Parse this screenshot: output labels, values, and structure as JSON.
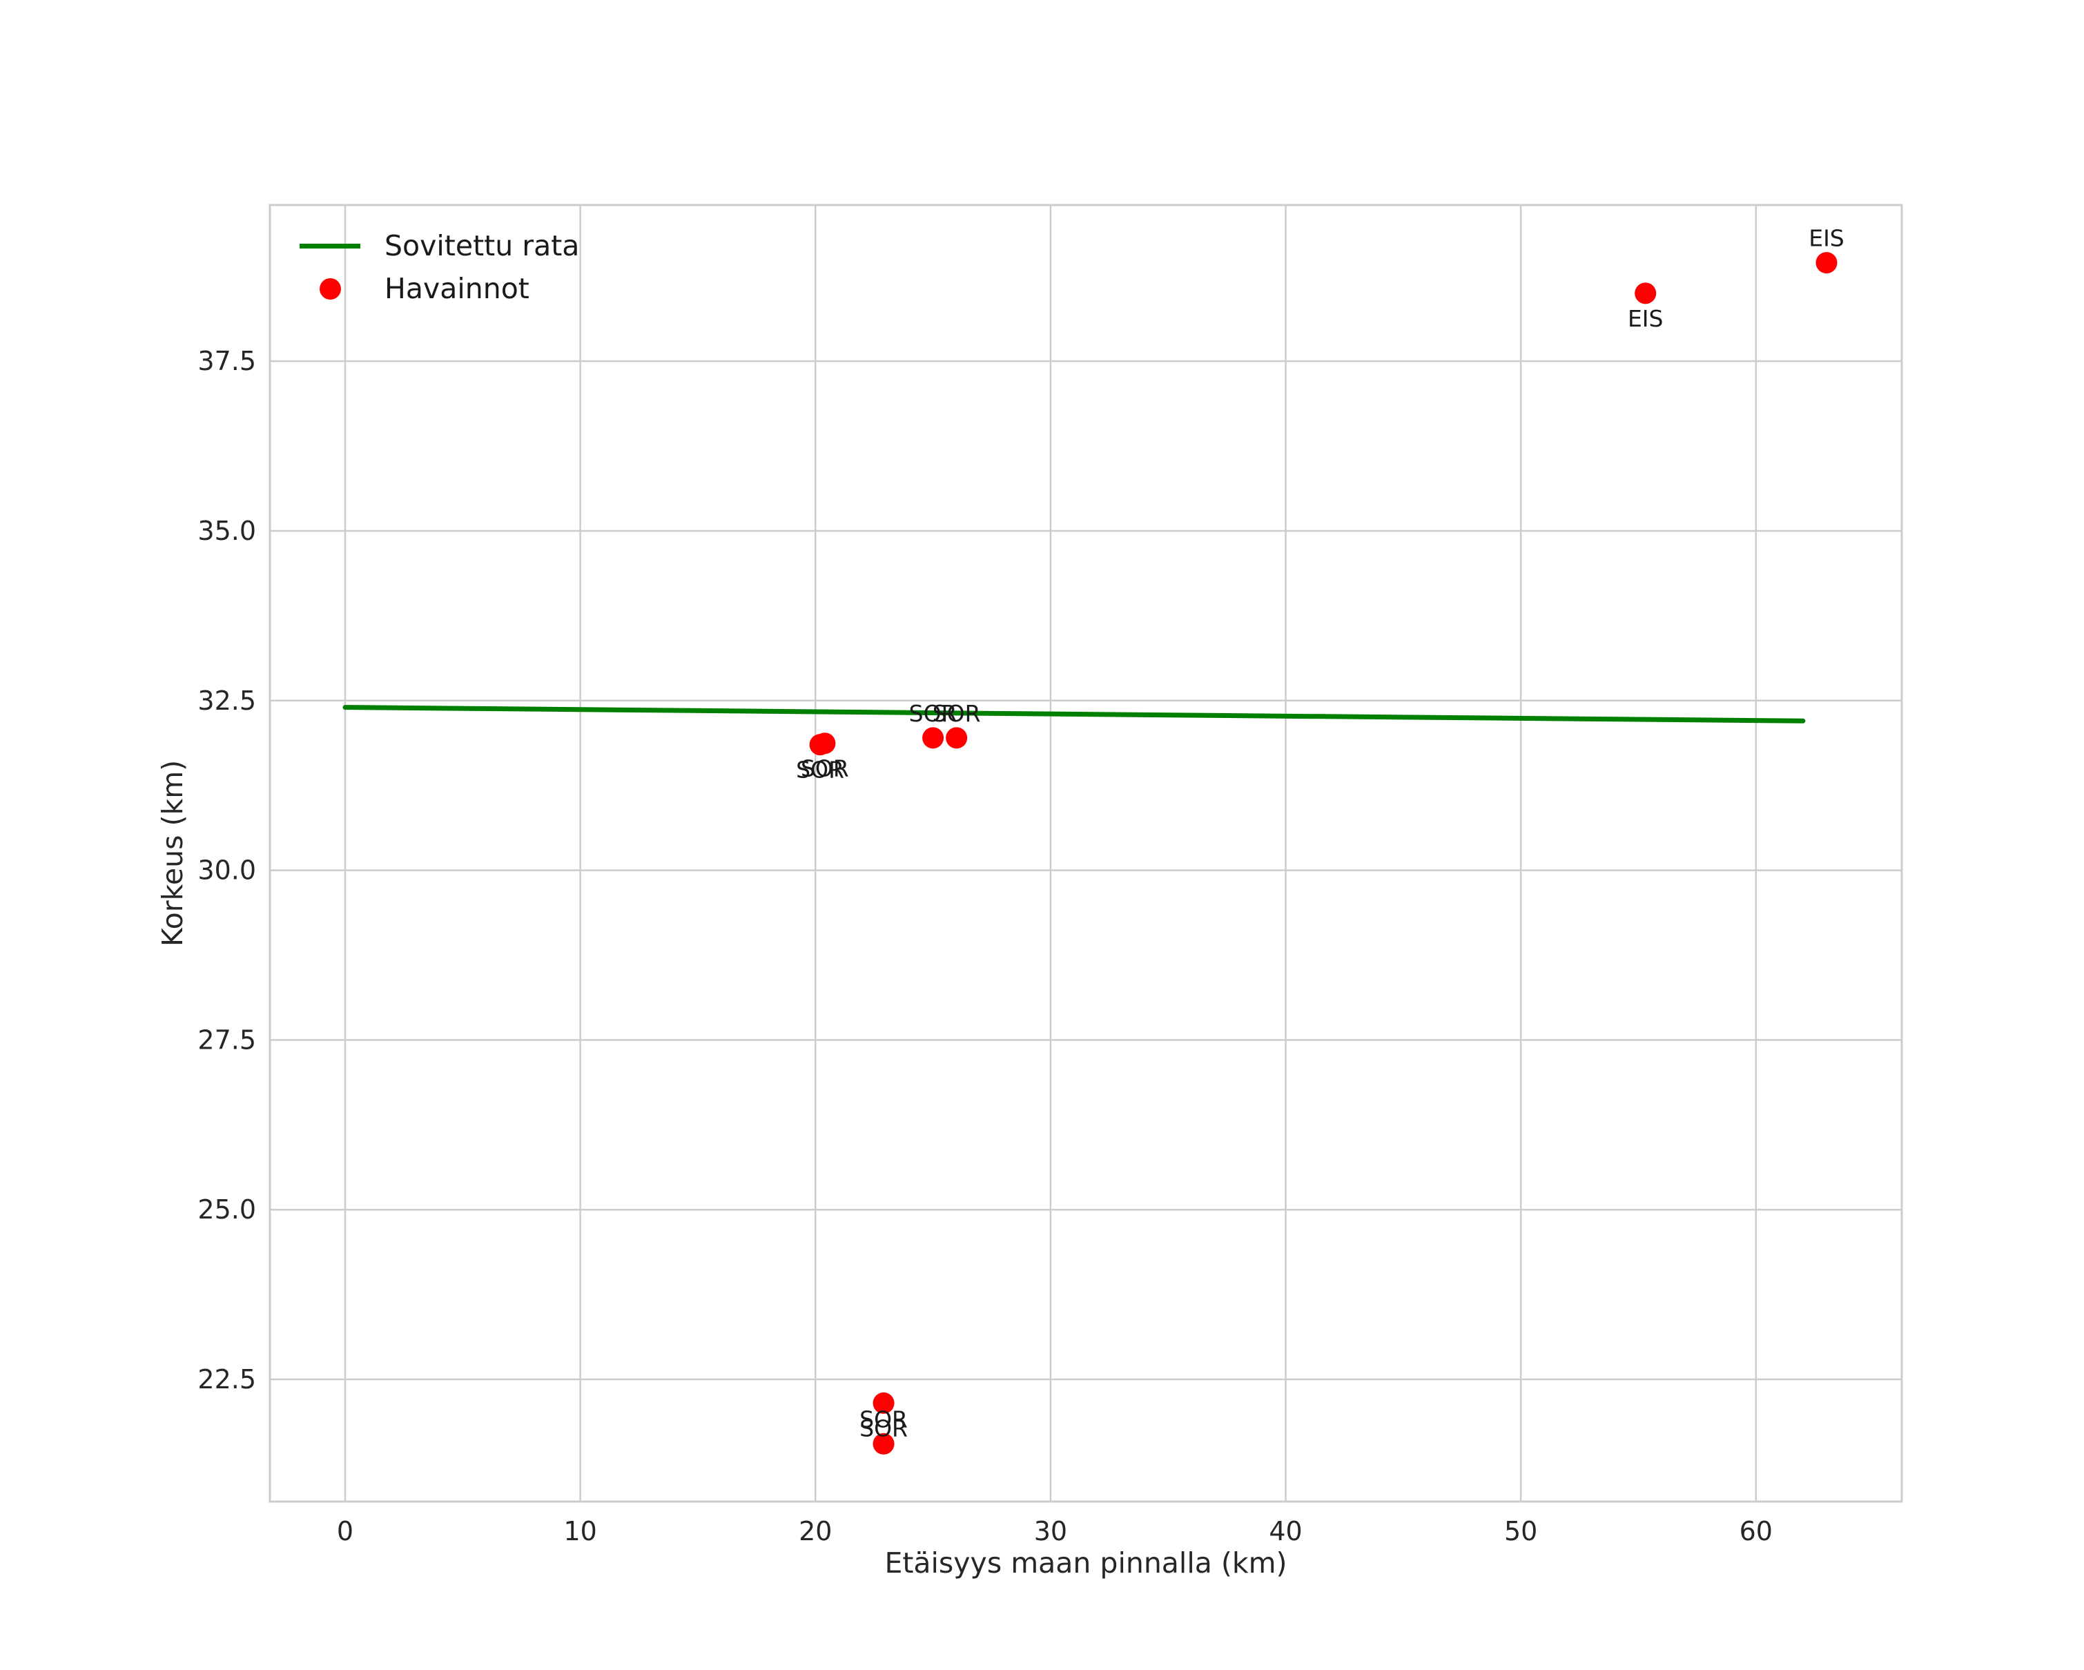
{
  "chart_data": {
    "type": "scatter",
    "title": "",
    "xlabel": "Etäisyys maan pinnalla (km)",
    "ylabel": "Korkeus (km)",
    "xlim": [
      -3.2,
      66.2
    ],
    "ylim": [
      20.7,
      39.8
    ],
    "xticks": [
      0,
      10,
      20,
      30,
      40,
      50,
      60
    ],
    "xtick_labels": [
      "0",
      "10",
      "20",
      "30",
      "40",
      "50",
      "60"
    ],
    "yticks": [
      22.5,
      25.0,
      27.5,
      30.0,
      32.5,
      35.0,
      37.5
    ],
    "ytick_labels": [
      "22.5",
      "25.0",
      "27.5",
      "30.0",
      "32.5",
      "35.0",
      "37.5"
    ],
    "grid": true,
    "legend": {
      "position": "upper-left",
      "entries": [
        {
          "label": "Sovitettu rata",
          "marker": "line",
          "color": "#008000"
        },
        {
          "label": "Havainnot",
          "marker": "point",
          "color": "#ff0000"
        }
      ]
    },
    "series": [
      {
        "name": "Sovitettu rata",
        "type": "line",
        "color": "#008000",
        "x": [
          0,
          62
        ],
        "y": [
          32.4,
          32.2
        ]
      },
      {
        "name": "Havainnot",
        "type": "scatter",
        "color": "#ff0000",
        "points": [
          {
            "x": 20.2,
            "y": 31.85,
            "label": "SOR",
            "label_pos": "below"
          },
          {
            "x": 20.4,
            "y": 31.87,
            "label": "SOR",
            "label_pos": "below"
          },
          {
            "x": 25.0,
            "y": 31.95,
            "label": "SOR",
            "label_pos": "above"
          },
          {
            "x": 26.0,
            "y": 31.95,
            "label": "SOR",
            "label_pos": "above"
          },
          {
            "x": 22.9,
            "y": 22.15,
            "label": "SOR",
            "label_pos": "below"
          },
          {
            "x": 22.9,
            "y": 21.55,
            "label": "SOR",
            "label_pos": "above"
          },
          {
            "x": 55.3,
            "y": 38.5,
            "label": "EIS",
            "label_pos": "below"
          },
          {
            "x": 63.0,
            "y": 38.95,
            "label": "EIS",
            "label_pos": "above"
          }
        ]
      }
    ],
    "colors": {
      "grid": "#cccccc",
      "border": "#cccccc",
      "tick_text": "#262626",
      "annotation_text": "#1a1a1a",
      "background": "#ffffff"
    }
  }
}
